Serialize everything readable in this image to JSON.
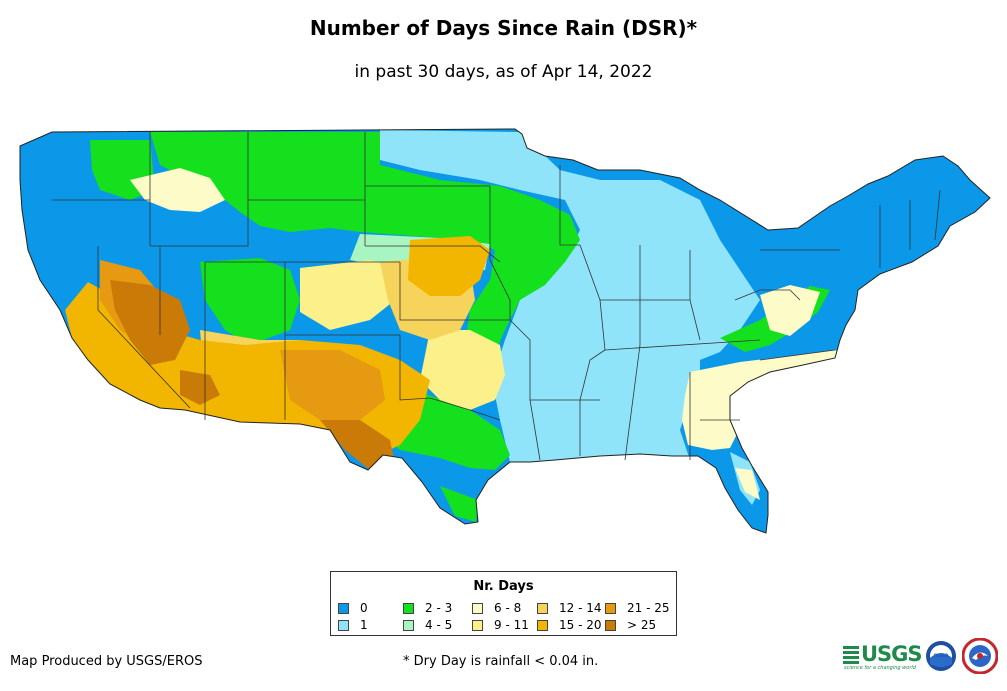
{
  "title": "Number of Days Since Rain (DSR)*",
  "subtitle": "in past 30 days, as of Apr 14, 2022",
  "legend": {
    "title": "Nr. Days",
    "items": [
      {
        "label": "0",
        "color": "#0b98e8"
      },
      {
        "label": "1",
        "color": "#8fe4f9"
      },
      {
        "label": "2 - 3",
        "color": "#14e01e"
      },
      {
        "label": "4 - 5",
        "color": "#a9f5c2"
      },
      {
        "label": "6 - 8",
        "color": "#fdfbc8"
      },
      {
        "label": "9 - 11",
        "color": "#fbf08a"
      },
      {
        "label": "12 - 14",
        "color": "#f6d35a"
      },
      {
        "label": "15 - 20",
        "color": "#f2b600"
      },
      {
        "label": "21 - 25",
        "color": "#e59a12"
      },
      {
        "label": "> 25",
        "color": "#c97a07"
      }
    ]
  },
  "producer": "Map Produced by USGS/EROS",
  "footnote": "* Dry Day is rainfall < 0.04 in.",
  "logos": {
    "usgs": {
      "text": "USGS",
      "tagline": "science for a changing world",
      "color": "#1f8a4c"
    },
    "noaa": {
      "text": "noaa",
      "icon": "noaa-logo-icon"
    },
    "nws": {
      "icon": "nws-logo-icon"
    }
  }
}
